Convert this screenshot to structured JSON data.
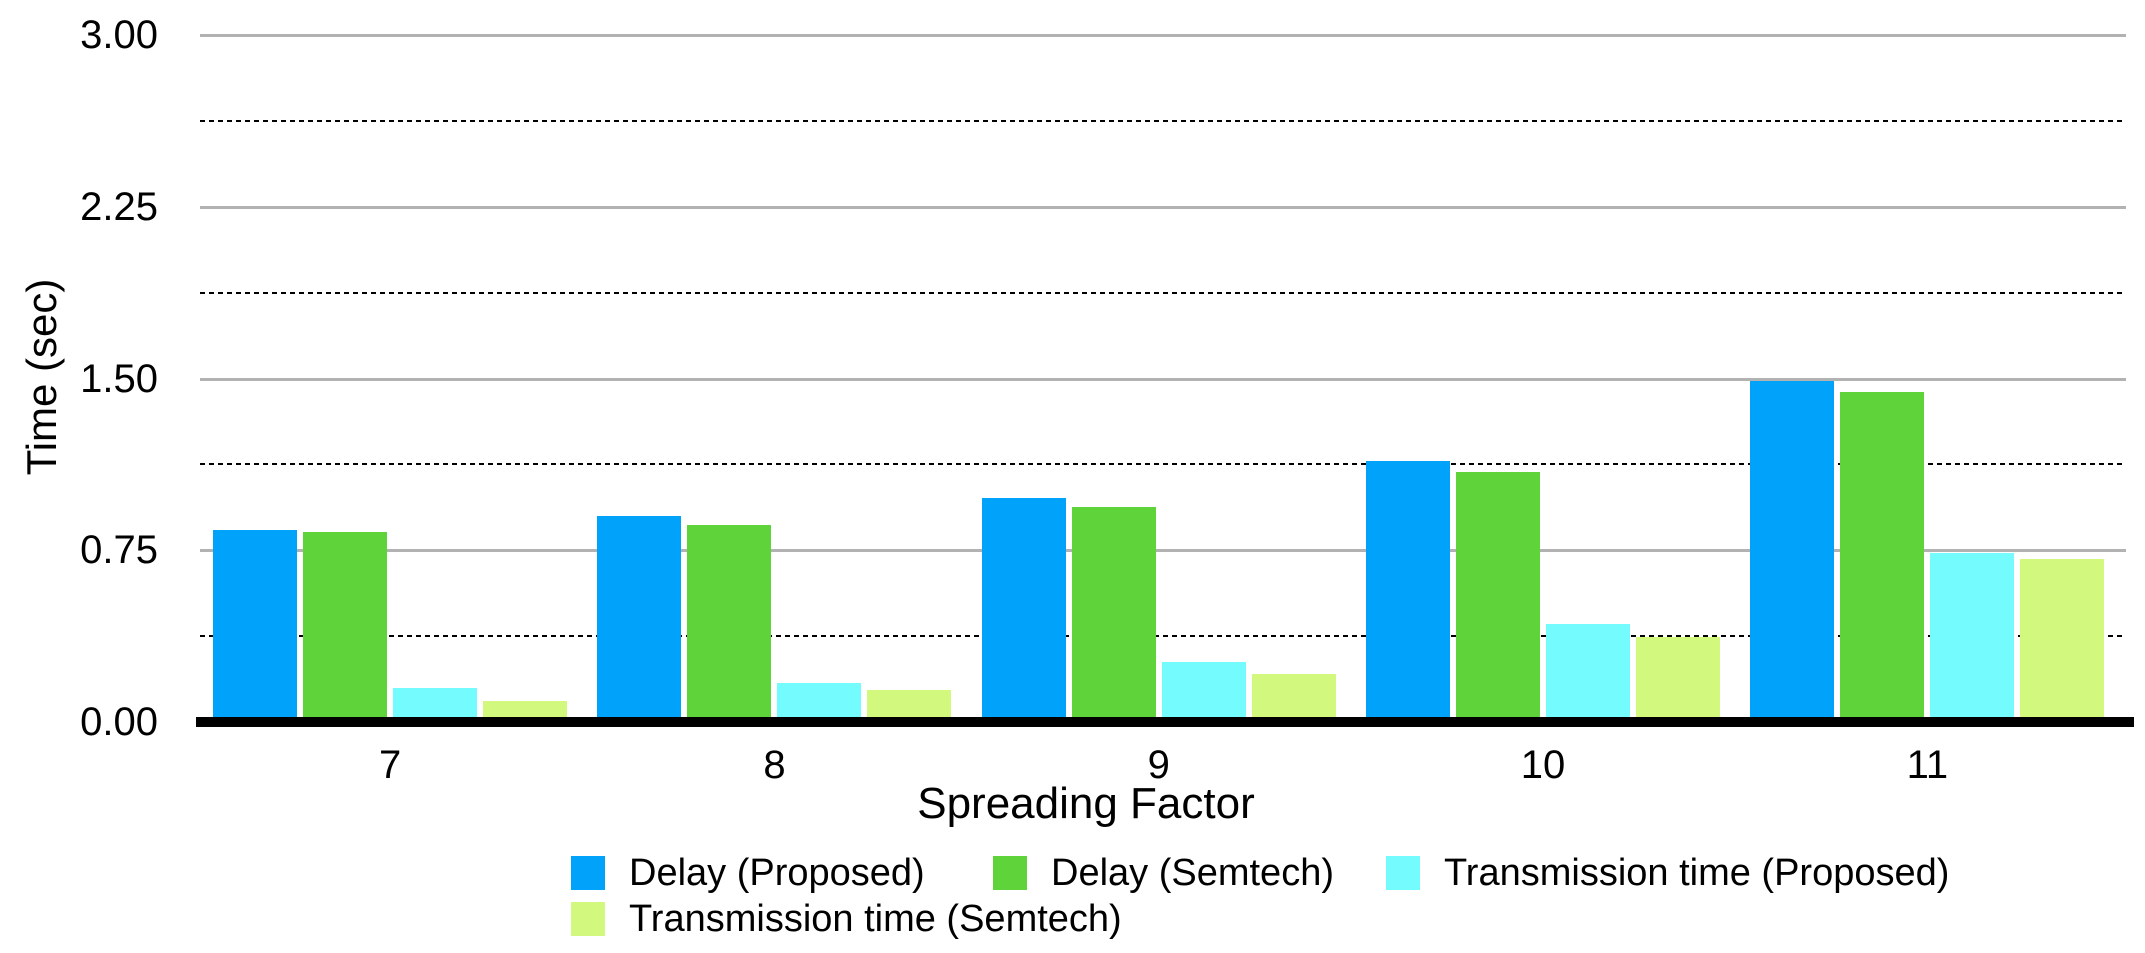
{
  "chart_data": {
    "type": "bar",
    "title": "",
    "xlabel": "Spreading Factor",
    "ylabel": "Time (sec)",
    "categories": [
      "7",
      "8",
      "9",
      "10",
      "11"
    ],
    "series": [
      {
        "name": "Delay (Proposed)",
        "color": "#01A2F9",
        "values": [
          0.84,
          0.9,
          0.98,
          1.14,
          1.49
        ]
      },
      {
        "name": "Delay (Semtech)",
        "color": "#5ED43A",
        "values": [
          0.83,
          0.86,
          0.94,
          1.09,
          1.44
        ]
      },
      {
        "name": "Transmission time (Proposed)",
        "color": "#74FBFE",
        "values": [
          0.15,
          0.17,
          0.26,
          0.43,
          0.74
        ]
      },
      {
        "name": "Transmission time (Semtech)",
        "color": "#D2F97D",
        "values": [
          0.09,
          0.14,
          0.21,
          0.37,
          0.71
        ]
      }
    ],
    "ylim": [
      0.0,
      3.0
    ],
    "yticks": [
      "0.00",
      "0.75",
      "1.50",
      "2.25",
      "3.00"
    ],
    "ytick_values": [
      0.0,
      0.75,
      1.5,
      2.25,
      3.0
    ],
    "minor_grid_values": [
      0.375,
      1.125,
      1.875,
      2.625
    ],
    "grid": "solid gray major lines, dashed black minor lines, thick black baseline",
    "legend_position": "bottom",
    "background_color": "#FFFFFF",
    "text_color": "#000000",
    "major_grid_color": "#B2B2B2"
  }
}
